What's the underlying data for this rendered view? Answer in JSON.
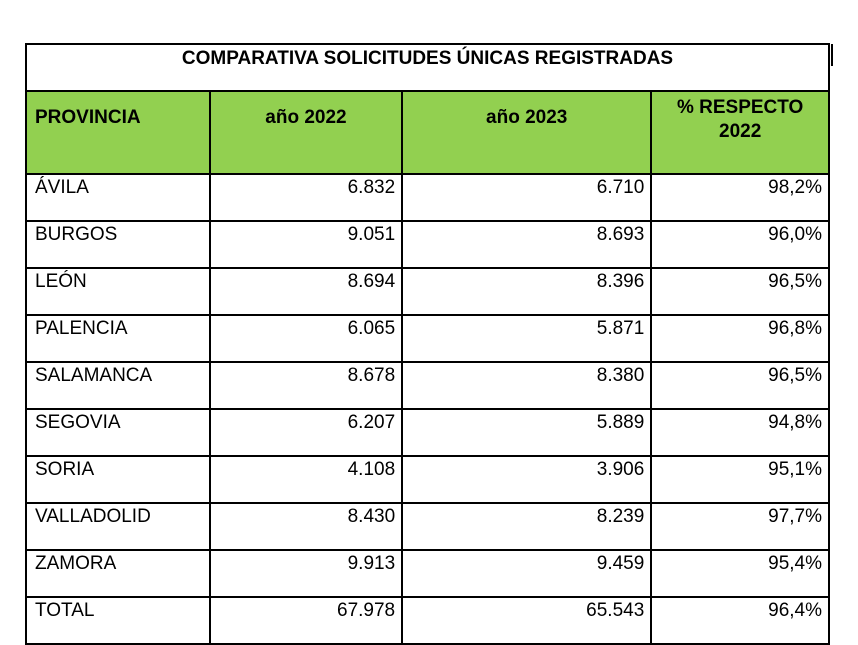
{
  "title": "COMPARATIVA SOLICITUDES ÚNICAS REGISTRADAS",
  "headers": [
    "PROVINCIA",
    "año 2022",
    "año 2023",
    "% RESPECTO 2022"
  ],
  "header_color": "#92d050",
  "rows": [
    {
      "provincia": "ÁVILA",
      "y2022": "6.832",
      "y2023": "6.710",
      "pct": "98,2%"
    },
    {
      "provincia": "BURGOS",
      "y2022": "9.051",
      "y2023": "8.693",
      "pct": "96,0%"
    },
    {
      "provincia": "LEÓN",
      "y2022": "8.694",
      "y2023": "8.396",
      "pct": "96,5%"
    },
    {
      "provincia": "PALENCIA",
      "y2022": "6.065",
      "y2023": "5.871",
      "pct": "96,8%"
    },
    {
      "provincia": "SALAMANCA",
      "y2022": "8.678",
      "y2023": "8.380",
      "pct": "96,5%"
    },
    {
      "provincia": "SEGOVIA",
      "y2022": "6.207",
      "y2023": "5.889",
      "pct": "94,8%"
    },
    {
      "provincia": "SORIA",
      "y2022": "4.108",
      "y2023": "3.906",
      "pct": "95,1%"
    },
    {
      "provincia": "VALLADOLID",
      "y2022": "8.430",
      "y2023": "8.239",
      "pct": "97,7%"
    },
    {
      "provincia": "ZAMORA",
      "y2022": "9.913",
      "y2023": "9.459",
      "pct": "95,4%"
    },
    {
      "provincia": "TOTAL",
      "y2022": "67.978",
      "y2023": "65.543",
      "pct": "96,4%"
    }
  ]
}
